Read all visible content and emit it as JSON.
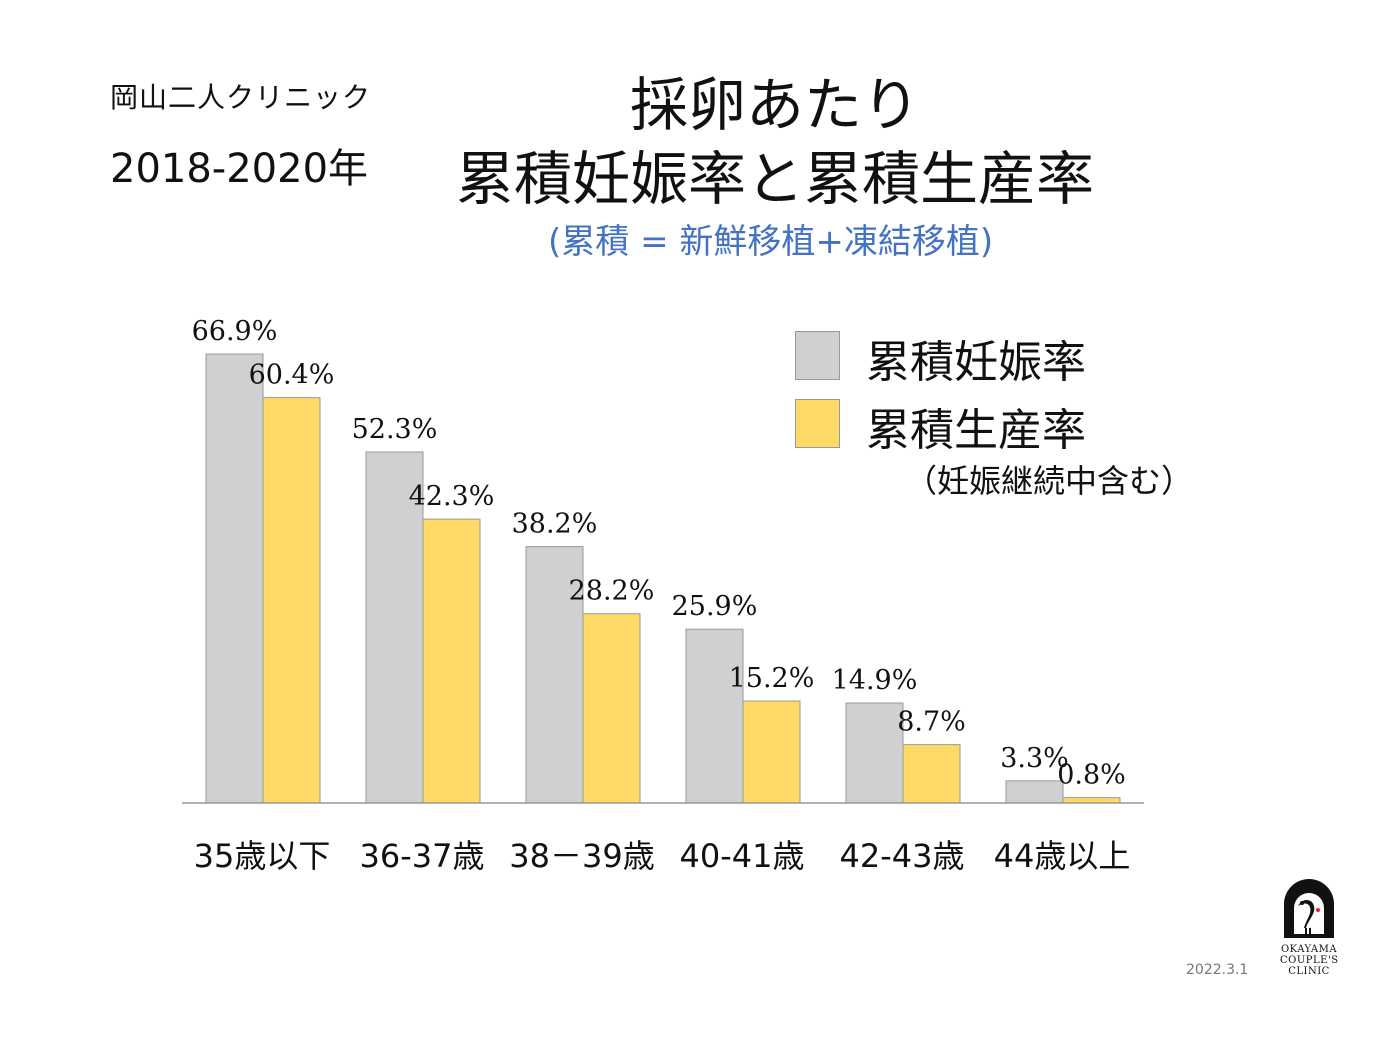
{
  "header": {
    "clinic_name": "岡山二人クリニック",
    "period": "2018-2020年",
    "title_line1": "採卵あたり",
    "title_line2": "累積妊娠率と累積生産率",
    "subtitle": "(累積 = 新鮮移植+凍結移植)"
  },
  "legend": {
    "items": [
      {
        "label": "累積妊娠率",
        "color": "#d0cfd1"
      },
      {
        "label": "累積生産率",
        "color": "#ffd966"
      }
    ],
    "note": "（妊娠継続中含む）"
  },
  "chart_data": {
    "type": "bar",
    "categories": [
      "35歳以下",
      "36-37歳",
      "38－39歳",
      "40-41歳",
      "42-43歳",
      "44歳以上"
    ],
    "series": [
      {
        "name": "累積妊娠率",
        "values": [
          66.9,
          52.3,
          38.2,
          25.9,
          14.9,
          3.3
        ],
        "labels": [
          "66.9%",
          "52.3%",
          "38.2%",
          "25.9%",
          "14.9%",
          "3.3%"
        ],
        "color": "#d0cfd1"
      },
      {
        "name": "累積生産率",
        "values": [
          60.4,
          42.3,
          28.2,
          15.2,
          8.7,
          0.8
        ],
        "labels": [
          "60.4%",
          "42.3%",
          "28.2%",
          "15.2%",
          "8.7%",
          "0.8%"
        ],
        "color": "#ffd966"
      }
    ],
    "ylim": [
      0,
      70
    ],
    "grid": false,
    "legend_position": "top-right"
  },
  "footer": {
    "date": "2022.3.1",
    "logo_line1": "OKAYAMA",
    "logo_line2": "COUPLE'S",
    "logo_line3": "CLINIC"
  }
}
